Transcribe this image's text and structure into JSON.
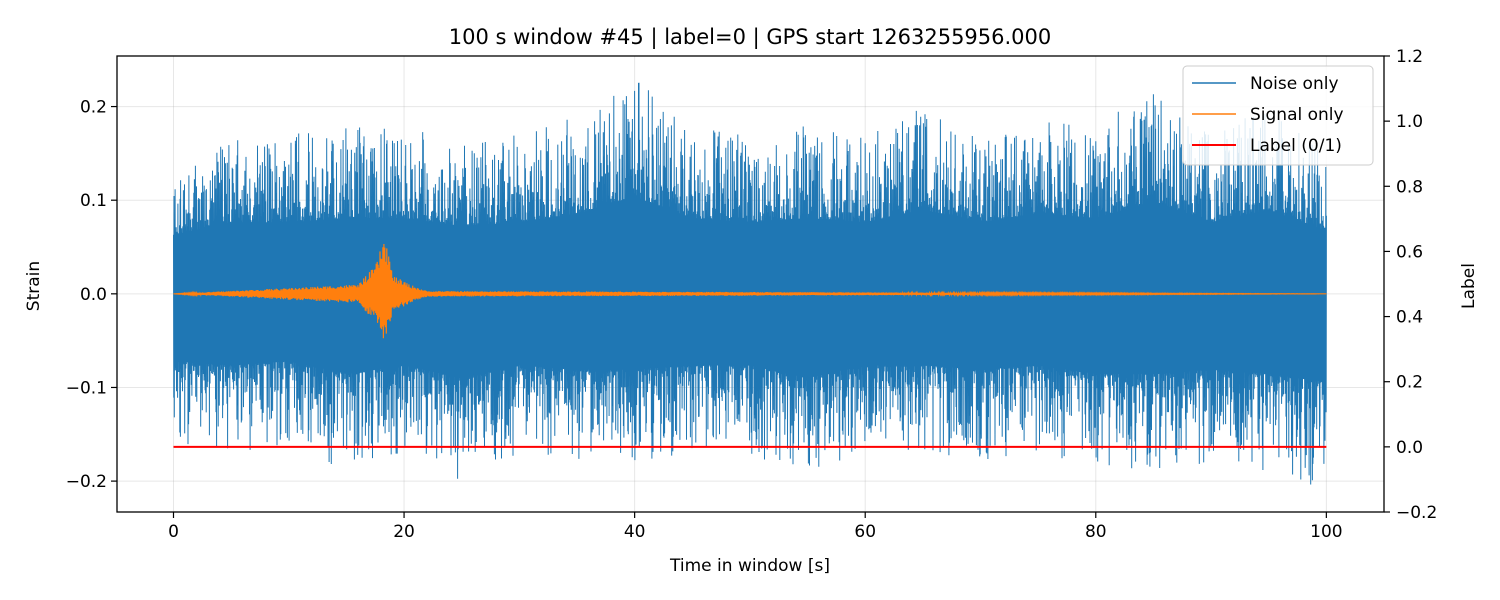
{
  "chart_data": {
    "type": "line",
    "title": "100 s window #45 | label=0 | GPS start 1263255956.000",
    "xlabel": "Time in window [s]",
    "ylabel": "Strain",
    "y2label": "Label",
    "xlim": [
      -4.9,
      105
    ],
    "ylim": [
      -0.233,
      0.254
    ],
    "y2lim": [
      -0.2,
      1.2
    ],
    "xticks": [
      0,
      20,
      40,
      60,
      80,
      100
    ],
    "xtick_labels": [
      "0",
      "20",
      "40",
      "60",
      "80",
      "100"
    ],
    "yticks": [
      -0.2,
      -0.1,
      0.0,
      0.1,
      0.2
    ],
    "ytick_labels": [
      "−0.2",
      "−0.1",
      "0.0",
      "0.1",
      "0.2"
    ],
    "y2ticks": [
      -0.2,
      0.0,
      0.2,
      0.4,
      0.6,
      0.8,
      1.0,
      1.2
    ],
    "y2tick_labels": [
      "−0.2",
      "0.0",
      "0.2",
      "0.4",
      "0.6",
      "0.8",
      "1.0",
      "1.2"
    ],
    "grid": true,
    "legend_position": "top-right",
    "series": [
      {
        "name": "Noise only",
        "color": "#1f77b4",
        "axis": "left",
        "x": [
          0,
          5,
          10,
          15,
          20,
          25,
          30,
          35,
          40,
          45,
          50,
          55,
          60,
          65,
          70,
          75,
          80,
          85,
          90,
          95,
          100
        ],
        "y_upper_envelope": [
          0.14,
          0.17,
          0.17,
          0.18,
          0.18,
          0.16,
          0.17,
          0.19,
          0.23,
          0.18,
          0.17,
          0.18,
          0.17,
          0.2,
          0.17,
          0.19,
          0.18,
          0.22,
          0.17,
          0.2,
          0.15
        ],
        "y_lower_envelope": [
          -0.16,
          -0.17,
          -0.16,
          -0.19,
          -0.17,
          -0.2,
          -0.17,
          -0.18,
          -0.18,
          -0.17,
          -0.17,
          -0.2,
          -0.17,
          -0.17,
          -0.18,
          -0.17,
          -0.19,
          -0.19,
          -0.18,
          -0.19,
          -0.21
        ]
      },
      {
        "name": "Signal only",
        "color": "#ff7f0e",
        "axis": "left",
        "x": [
          0,
          16,
          17.5,
          18.3,
          18.6,
          19,
          20.5,
          22,
          100
        ],
        "y_max": [
          0.0,
          0.01,
          0.03,
          0.06,
          0.05,
          0.02,
          0.01,
          0.003,
          0.0
        ],
        "y_min": [
          0.0,
          -0.01,
          -0.03,
          -0.055,
          -0.04,
          -0.02,
          -0.01,
          -0.003,
          0.0
        ]
      },
      {
        "name": "Label (0/1)",
        "color": "#ff0000",
        "axis": "right",
        "x": [
          0,
          100
        ],
        "y": [
          0,
          0
        ]
      }
    ]
  }
}
